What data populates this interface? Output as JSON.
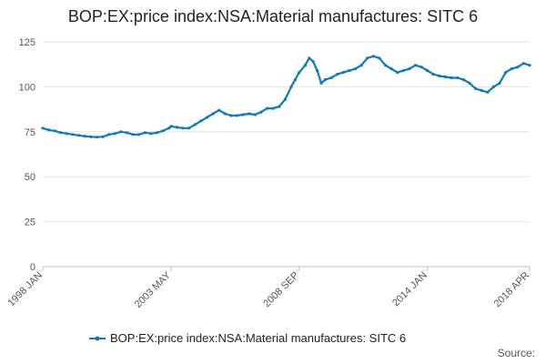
{
  "chart_data": {
    "type": "line",
    "title": "BOP:EX:price index:NSA:Material manufactures: SITC 6",
    "xlabel": "",
    "ylabel": "",
    "x_range": [
      "1998 JAN",
      "2018 APR"
    ],
    "ylim": [
      0,
      125
    ],
    "y_ticks": [
      "0",
      "25",
      "50",
      "75",
      "100",
      "125"
    ],
    "x_ticks": [
      "1998 JAN",
      "2003 MAY",
      "2008 SEP",
      "2014 JAN",
      "2018 APR"
    ],
    "grid": true,
    "legend_position": "bottom",
    "source_label": "Source:",
    "colors": {
      "series": "#0e7ab8",
      "grid": "#e6e6e6",
      "axis": "#c0c0c0"
    },
    "series": [
      {
        "name": "BOP:EX:price index:NSA:Material manufactures: SITC 6",
        "points": [
          [
            "1998-01",
            77
          ],
          [
            "1998-04",
            76
          ],
          [
            "1998-07",
            75.5
          ],
          [
            "1998-10",
            74.5
          ],
          [
            "1999-01",
            74
          ],
          [
            "1999-04",
            73.5
          ],
          [
            "1999-07",
            73
          ],
          [
            "1999-10",
            72.5
          ],
          [
            "2000-01",
            72.2
          ],
          [
            "2000-04",
            72
          ],
          [
            "2000-07",
            72.2
          ],
          [
            "2000-10",
            73.5
          ],
          [
            "2001-01",
            74
          ],
          [
            "2001-04",
            75
          ],
          [
            "2001-07",
            74.5
          ],
          [
            "2001-10",
            73.5
          ],
          [
            "2002-01",
            73.5
          ],
          [
            "2002-04",
            74.5
          ],
          [
            "2002-07",
            74
          ],
          [
            "2002-10",
            74.5
          ],
          [
            "2003-01",
            75.5
          ],
          [
            "2003-04",
            77
          ],
          [
            "2003-05",
            78
          ],
          [
            "2003-08",
            77.5
          ],
          [
            "2003-11",
            77
          ],
          [
            "2004-02",
            77
          ],
          [
            "2004-05",
            79
          ],
          [
            "2004-08",
            81
          ],
          [
            "2004-11",
            83
          ],
          [
            "2005-02",
            85
          ],
          [
            "2005-05",
            87
          ],
          [
            "2005-08",
            85
          ],
          [
            "2005-11",
            84
          ],
          [
            "2006-02",
            84
          ],
          [
            "2006-05",
            84.5
          ],
          [
            "2006-08",
            85
          ],
          [
            "2006-11",
            84.5
          ],
          [
            "2007-02",
            86
          ],
          [
            "2007-05",
            88
          ],
          [
            "2007-08",
            88
          ],
          [
            "2007-11",
            89
          ],
          [
            "2008-02",
            93
          ],
          [
            "2008-05",
            100
          ],
          [
            "2008-07",
            104
          ],
          [
            "2008-09",
            108
          ],
          [
            "2008-12",
            112
          ],
          [
            "2009-02",
            116
          ],
          [
            "2009-04",
            114
          ],
          [
            "2009-06",
            109
          ],
          [
            "2009-08",
            102
          ],
          [
            "2009-10",
            104
          ],
          [
            "2010-01",
            105
          ],
          [
            "2010-04",
            107
          ],
          [
            "2010-07",
            108
          ],
          [
            "2010-10",
            109
          ],
          [
            "2011-01",
            110
          ],
          [
            "2011-04",
            112
          ],
          [
            "2011-07",
            116
          ],
          [
            "2011-10",
            117
          ],
          [
            "2012-01",
            116
          ],
          [
            "2012-04",
            112
          ],
          [
            "2012-07",
            110
          ],
          [
            "2012-10",
            108
          ],
          [
            "2013-01",
            109
          ],
          [
            "2013-04",
            110
          ],
          [
            "2013-07",
            112
          ],
          [
            "2013-10",
            111
          ],
          [
            "2014-01",
            109
          ],
          [
            "2014-04",
            107
          ],
          [
            "2014-07",
            106
          ],
          [
            "2014-10",
            105.5
          ],
          [
            "2015-01",
            105
          ],
          [
            "2015-04",
            105
          ],
          [
            "2015-07",
            104
          ],
          [
            "2015-10",
            102
          ],
          [
            "2016-01",
            99
          ],
          [
            "2016-04",
            98
          ],
          [
            "2016-07",
            97
          ],
          [
            "2016-10",
            100
          ],
          [
            "2017-01",
            102
          ],
          [
            "2017-04",
            108
          ],
          [
            "2017-07",
            110
          ],
          [
            "2017-10",
            111
          ],
          [
            "2018-01",
            113
          ],
          [
            "2018-04",
            112
          ]
        ]
      }
    ]
  }
}
